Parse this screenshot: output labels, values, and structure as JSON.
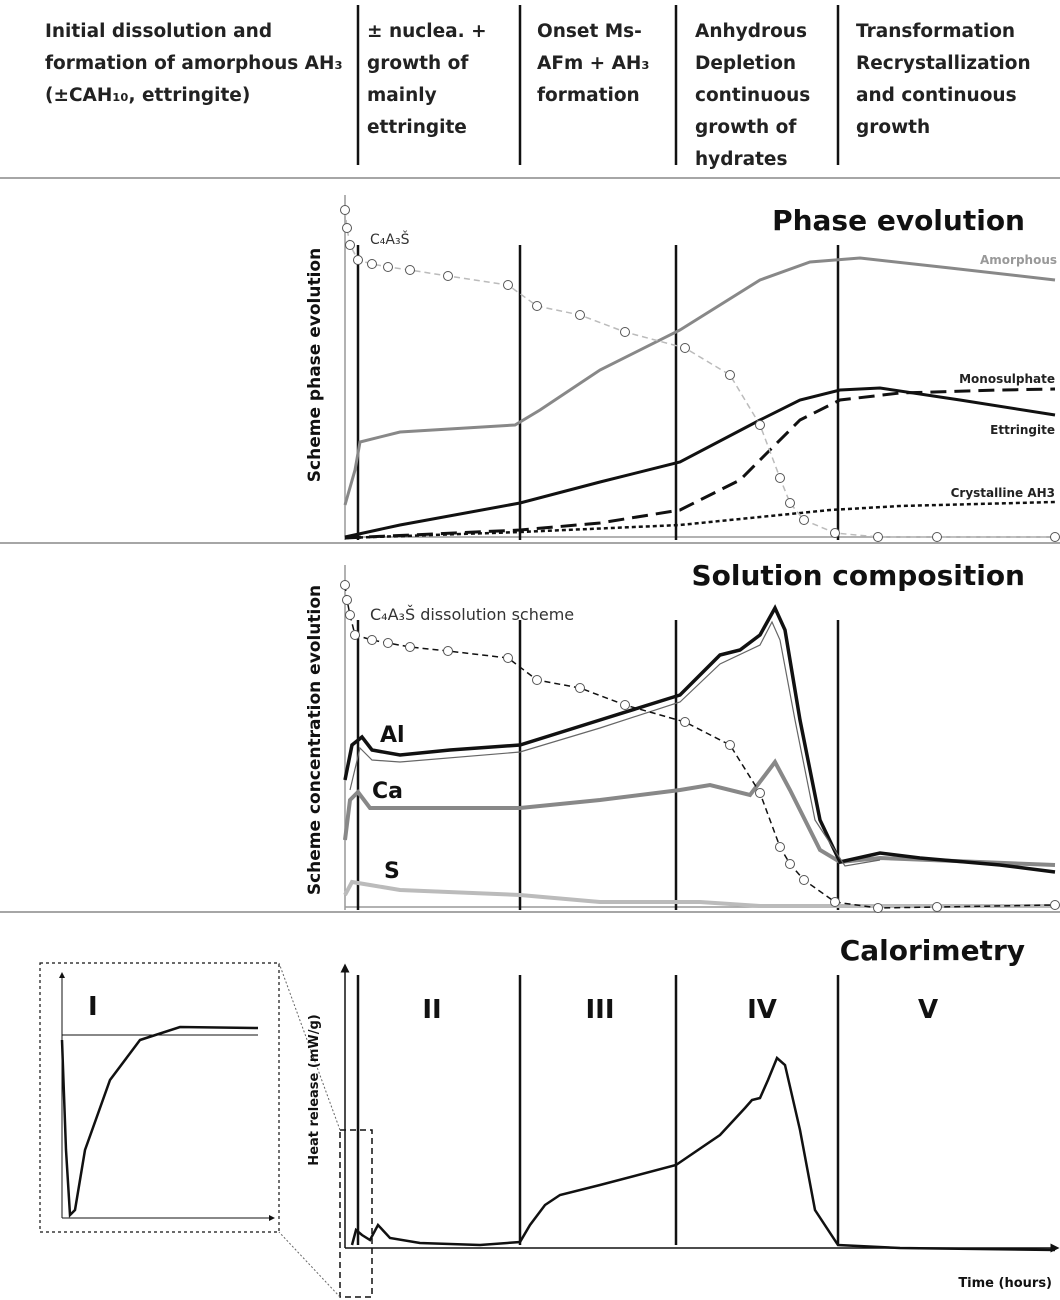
{
  "header": {
    "stages": [
      "Initial dissolution and formation of amorphous AH₃ (±CAH₁₀, ettringite)",
      "± nuclea. + growth of mainly ettringite",
      "Onset Ms-AFm + AH₃ formation",
      "Anhydrous Depletion continuous growth of hydrates",
      "Transformation Recrystallization and continuous growth"
    ]
  },
  "phase_evolution": {
    "title": "Phase evolution",
    "y_label": "Scheme phase evolution",
    "labels": {
      "anhydrous": "C₄A₃Š",
      "amorphous": "Amorphous",
      "monosulphate": "Monosulphate",
      "ettringite": "Ettringite",
      "crystalline": "Crystalline AH3"
    }
  },
  "solution_composition": {
    "title": "Solution composition",
    "y_label": "Scheme concentration evolution",
    "labels": {
      "anhydrous": "C₄A₃Š dissolution scheme",
      "al": "Al",
      "ca": "Ca",
      "s": "S"
    }
  },
  "calorimetry": {
    "title": "Calorimetry",
    "y_label": "Heat release (mW/g)",
    "x_label": "Time (hours)",
    "periods": [
      "I",
      "II",
      "III",
      "IV",
      "V"
    ]
  }
}
